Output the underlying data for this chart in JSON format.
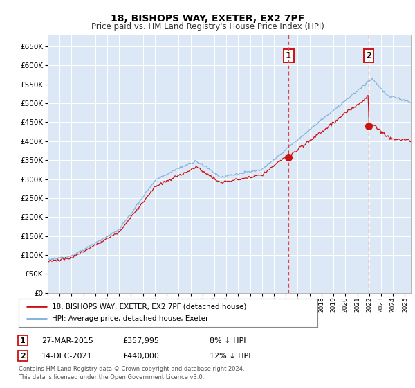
{
  "title1": "18, BISHOPS WAY, EXETER, EX2 7PF",
  "title2": "Price paid vs. HM Land Registry's House Price Index (HPI)",
  "bg_color": "#ffffff",
  "plot_bg_color": "#dce8f5",
  "grid_color": "#ffffff",
  "hpi_color": "#7aaddb",
  "price_color": "#cc1111",
  "vline_color": "#dd4444",
  "sale1": {
    "date": "27-MAR-2015",
    "price": 357995,
    "label": "1",
    "year": 2015.23,
    "note": "8% ↓ HPI"
  },
  "sale2": {
    "date": "14-DEC-2021",
    "price": 440000,
    "label": "2",
    "year": 2021.96,
    "note": "12% ↓ HPI"
  },
  "legend_line1": "18, BISHOPS WAY, EXETER, EX2 7PF (detached house)",
  "legend_line2": "HPI: Average price, detached house, Exeter",
  "footer": "Contains HM Land Registry data © Crown copyright and database right 2024.\nThis data is licensed under the Open Government Licence v3.0.",
  "ylim": [
    0,
    680000
  ],
  "yticks": [
    0,
    50000,
    100000,
    150000,
    200000,
    250000,
    300000,
    350000,
    400000,
    450000,
    500000,
    550000,
    600000,
    650000
  ],
  "xmin": 1995.0,
  "xmax": 2025.5
}
